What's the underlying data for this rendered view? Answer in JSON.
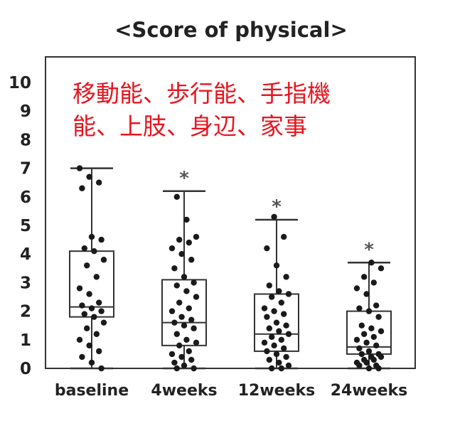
{
  "chart_data": {
    "type": "box",
    "title": "<Score of physical>",
    "annotation": {
      "lines": [
        "移動能、歩行能、手指機",
        "能、上肢、身辺、家事"
      ],
      "color": "#e8141e"
    },
    "xlabel": "",
    "ylabel": "",
    "ylim": [
      0,
      10
    ],
    "y_ticks": [
      "0",
      "1",
      "2",
      "3",
      "4",
      "5",
      "6",
      "7",
      "8",
      "9",
      "10"
    ],
    "grid": false,
    "categories": [
      "baseline",
      "4weeks",
      "12weeks",
      "24weeks"
    ],
    "boxes": [
      {
        "category": "baseline",
        "min": 0,
        "q1": 1.8,
        "median": 2.15,
        "q3": 4.1,
        "max": 7.0,
        "significance": ""
      },
      {
        "category": "4weeks",
        "min": 0,
        "q1": 0.8,
        "median": 1.6,
        "q3": 3.1,
        "max": 6.2,
        "significance": "*"
      },
      {
        "category": "12weeks",
        "min": 0,
        "q1": 0.6,
        "median": 1.2,
        "q3": 2.6,
        "max": 5.2,
        "significance": "*"
      },
      {
        "category": "24weeks",
        "min": 0,
        "q1": 0.5,
        "median": 0.75,
        "q3": 2.0,
        "max": 3.7,
        "significance": "*"
      }
    ],
    "points": [
      [
        7.0,
        6.7,
        6.5,
        6.3,
        4.6,
        4.5,
        4.2,
        4.1,
        3.8,
        3.6,
        3.2,
        2.8,
        2.6,
        2.3,
        2.2,
        2.1,
        2.0,
        1.9,
        1.8,
        1.6,
        1.4,
        1.2,
        1.0,
        0.8,
        0.6,
        0.4,
        0.2,
        0.0
      ],
      [
        6.0,
        5.2,
        4.6,
        4.5,
        4.4,
        4.2,
        4.0,
        3.8,
        3.5,
        3.2,
        3.0,
        2.9,
        2.7,
        2.5,
        2.3,
        2.1,
        2.0,
        1.8,
        1.7,
        1.6,
        1.5,
        1.4,
        1.2,
        1.0,
        0.9,
        0.8,
        0.6,
        0.5,
        0.4,
        0.3,
        0.2,
        0.1,
        0.0,
        0.0
      ],
      [
        5.3,
        4.6,
        4.2,
        3.6,
        3.2,
        2.9,
        2.7,
        2.6,
        2.5,
        2.3,
        2.1,
        2.0,
        1.9,
        1.8,
        1.6,
        1.5,
        1.4,
        1.3,
        1.2,
        1.1,
        1.0,
        0.9,
        0.8,
        0.7,
        0.6,
        0.5,
        0.4,
        0.3,
        0.2,
        0.1,
        0.0,
        0.0
      ],
      [
        3.7,
        3.5,
        3.2,
        3.0,
        2.8,
        2.6,
        2.2,
        2.1,
        2.0,
        1.8,
        1.5,
        1.4,
        1.3,
        1.2,
        1.1,
        1.0,
        0.9,
        0.8,
        0.7,
        0.6,
        0.5,
        0.5,
        0.4,
        0.4,
        0.3,
        0.3,
        0.2,
        0.2,
        0.1,
        0.1,
        0.0,
        0.0
      ]
    ]
  }
}
